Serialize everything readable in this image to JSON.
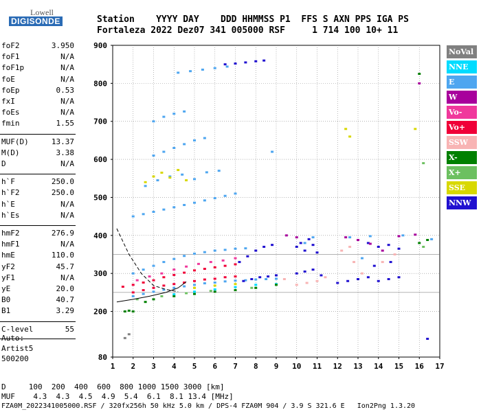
{
  "logo": {
    "lowell": "Lowell",
    "digisonde": "DIGISONDE"
  },
  "header": {
    "line1": "Station    YYYY DAY    DDD HHMMSS P1  FFS S AXN PPS IGA PS",
    "line2": "Fortaleza 2022 Dez07 341 005000 RSF     1 714 100 10+ 11"
  },
  "params": [
    {
      "group": 1,
      "label": "foF2",
      "value": "3.950"
    },
    {
      "group": 1,
      "label": "foF1",
      "value": "N/A"
    },
    {
      "group": 1,
      "label": "foF1p",
      "value": "N/A"
    },
    {
      "group": 1,
      "label": "foE",
      "value": "N/A"
    },
    {
      "group": 1,
      "label": "foEp",
      "value": "0.53"
    },
    {
      "group": 1,
      "label": "fxI",
      "value": "N/A"
    },
    {
      "group": 1,
      "label": "foEs",
      "value": "N/A"
    },
    {
      "group": 1,
      "label": "fmin",
      "value": "1.55"
    },
    {
      "group": 2,
      "label": "MUF(D)",
      "value": "13.37"
    },
    {
      "group": 2,
      "label": "M(D)",
      "value": "3.38"
    },
    {
      "group": 2,
      "label": "D",
      "value": "N/A"
    },
    {
      "group": 3,
      "label": "h`F",
      "value": "250.0"
    },
    {
      "group": 3,
      "label": "h`F2",
      "value": "250.0"
    },
    {
      "group": 3,
      "label": "h`E",
      "value": "N/A"
    },
    {
      "group": 3,
      "label": "h`Es",
      "value": "N/A"
    },
    {
      "group": 4,
      "label": "hmF2",
      "value": "276.9"
    },
    {
      "group": 4,
      "label": "hmF1",
      "value": "N/A"
    },
    {
      "group": 4,
      "label": "hmE",
      "value": "110.0"
    },
    {
      "group": 4,
      "label": "yF2",
      "value": "45.7"
    },
    {
      "group": 4,
      "label": "yF1",
      "value": "N/A"
    },
    {
      "group": 4,
      "label": "yE",
      "value": "20.0"
    },
    {
      "group": 4,
      "label": "B0",
      "value": "40.7"
    },
    {
      "group": 4,
      "label": "B1",
      "value": "3.29"
    },
    {
      "group": 5,
      "label": "C-level",
      "value": "55"
    }
  ],
  "auto": {
    "line1": "Auto:",
    "line2": "Artist5",
    "line3": "500200"
  },
  "footer": {
    "d_line": "D     100  200  400  600  800 1000 1500 3000 [km]",
    "muf_line": "MUF    4.3  4.3  4.5  4.9  5.4  6.1  8.1 13.4 [MHz]",
    "file_line": "FZA0M_2022341005000.RSF / 320fx256h 50 kHz 5.0 km / DPS-4 FZA0M 904 / 3.9 S 321.6 E   Ion2Png 1.3.20"
  },
  "legend": [
    {
      "label": "NoVal",
      "color": "#808080",
      "text_color": "#ffffff"
    },
    {
      "label": "NNE",
      "color": "#00dcff",
      "text_color": "#ffffff"
    },
    {
      "label": "E",
      "color": "#4ea6f0",
      "text_color": "#ffffff"
    },
    {
      "label": "W",
      "color": "#a8009c",
      "text_color": "#ffffff"
    },
    {
      "label": "Vo-",
      "color": "#f0389c",
      "text_color": "#ffffff"
    },
    {
      "label": "Vo+",
      "color": "#f00038",
      "text_color": "#ffffff"
    },
    {
      "label": "SSW",
      "color": "#f8b4b4",
      "text_color": "#ffffff"
    },
    {
      "label": "X-",
      "color": "#008000",
      "text_color": "#ffffff"
    },
    {
      "label": "X+",
      "color": "#6cc060",
      "text_color": "#ffffff"
    },
    {
      "label": "SSE",
      "color": "#d8d800",
      "text_color": "#ffffff"
    },
    {
      "label": "NNW",
      "color": "#2010d0",
      "text_color": "#ffffff"
    }
  ],
  "chart_data": {
    "type": "scatter",
    "title": "",
    "xlabel": "",
    "ylabel": "",
    "xlim": [
      1,
      17
    ],
    "ylim": [
      80,
      900
    ],
    "x_ticks": [
      1,
      2,
      3,
      4,
      5,
      6,
      7,
      8,
      9,
      10,
      11,
      12,
      13,
      14,
      15,
      16,
      17
    ],
    "y_ticks": [
      80,
      200,
      300,
      400,
      500,
      600,
      700,
      800,
      900
    ],
    "y_ref_lines": [
      350,
      250
    ],
    "grid": true,
    "legend_position": "right",
    "series": [
      {
        "legend": "E",
        "color": "#4ea6f0",
        "points": [
          [
            2.0,
            300
          ],
          [
            2.5,
            310
          ],
          [
            3.0,
            320
          ],
          [
            3.5,
            330
          ],
          [
            4.0,
            338
          ],
          [
            4.5,
            346
          ],
          [
            5.0,
            352
          ],
          [
            5.5,
            356
          ],
          [
            6.0,
            360
          ],
          [
            6.5,
            362
          ],
          [
            7.0,
            365
          ],
          [
            7.5,
            366
          ],
          [
            2.0,
            240
          ],
          [
            2.5,
            246
          ],
          [
            3.0,
            252
          ],
          [
            3.5,
            257
          ],
          [
            4.0,
            262
          ],
          [
            4.5,
            266
          ],
          [
            5.0,
            270
          ],
          [
            5.5,
            274
          ],
          [
            6.0,
            276
          ],
          [
            6.5,
            279
          ],
          [
            7.0,
            281
          ],
          [
            7.5,
            282
          ],
          [
            8.0,
            284
          ],
          [
            8.5,
            285
          ],
          [
            9.0,
            286
          ],
          [
            2.0,
            450
          ],
          [
            2.5,
            456
          ],
          [
            3.0,
            462
          ],
          [
            3.5,
            468
          ],
          [
            4.0,
            474
          ],
          [
            4.5,
            480
          ],
          [
            5.0,
            486
          ],
          [
            5.5,
            492
          ],
          [
            6.0,
            498
          ],
          [
            6.5,
            504
          ],
          [
            7.0,
            510
          ],
          [
            3.0,
            610
          ],
          [
            3.5,
            620
          ],
          [
            4.0,
            630
          ],
          [
            4.5,
            640
          ],
          [
            5.0,
            650
          ],
          [
            5.5,
            656
          ],
          [
            3.0,
            700
          ],
          [
            3.5,
            712
          ],
          [
            4.0,
            720
          ],
          [
            4.5,
            726
          ],
          [
            4.2,
            828
          ],
          [
            4.8,
            832
          ],
          [
            5.4,
            836
          ],
          [
            6.0,
            840
          ],
          [
            6.6,
            844
          ],
          [
            2.6,
            530
          ],
          [
            3.2,
            545
          ],
          [
            3.8,
            555
          ],
          [
            4.4,
            560
          ],
          [
            5.0,
            548
          ],
          [
            5.6,
            566
          ],
          [
            6.2,
            570
          ],
          [
            8.8,
            620
          ],
          [
            10.4,
            380
          ],
          [
            10.8,
            395
          ],
          [
            12.6,
            395
          ],
          [
            13.2,
            340
          ],
          [
            13.6,
            398
          ],
          [
            15.2,
            400
          ],
          [
            16.6,
            390
          ]
        ]
      },
      {
        "legend": "Vo+",
        "color": "#f00038",
        "points": [
          [
            1.5,
            265
          ],
          [
            2.0,
            270
          ],
          [
            2.5,
            276
          ],
          [
            3.0,
            282
          ],
          [
            3.5,
            290
          ],
          [
            4.0,
            296
          ],
          [
            4.5,
            302
          ],
          [
            5.0,
            308
          ],
          [
            5.5,
            312
          ],
          [
            6.0,
            316
          ],
          [
            6.5,
            320
          ],
          [
            7.0,
            324
          ],
          [
            2.0,
            250
          ],
          [
            2.5,
            256
          ],
          [
            3.0,
            262
          ],
          [
            3.5,
            268
          ],
          [
            4.0,
            272
          ],
          [
            4.5,
            276
          ],
          [
            5.0,
            280
          ],
          [
            5.5,
            284
          ],
          [
            6.0,
            286
          ],
          [
            6.5,
            290
          ],
          [
            7.0,
            292
          ]
        ]
      },
      {
        "legend": "Vo-",
        "color": "#f0389c",
        "points": [
          [
            2.2,
            282
          ],
          [
            2.8,
            292
          ],
          [
            3.4,
            300
          ],
          [
            4.0,
            310
          ],
          [
            4.6,
            318
          ],
          [
            5.2,
            325
          ],
          [
            5.8,
            330
          ],
          [
            6.4,
            334
          ],
          [
            7.0,
            340
          ]
        ]
      },
      {
        "legend": "NNW",
        "color": "#2010d0",
        "points": [
          [
            6.5,
            850
          ],
          [
            7.0,
            852
          ],
          [
            7.5,
            855
          ],
          [
            8.0,
            858
          ],
          [
            8.4,
            860
          ],
          [
            7.2,
            330
          ],
          [
            7.6,
            345
          ],
          [
            8.0,
            360
          ],
          [
            8.4,
            370
          ],
          [
            8.8,
            375
          ],
          [
            7.4,
            280
          ],
          [
            7.8,
            285
          ],
          [
            8.2,
            290
          ],
          [
            8.6,
            292
          ],
          [
            9.0,
            295
          ],
          [
            10.0,
            370
          ],
          [
            10.2,
            380
          ],
          [
            10.4,
            360
          ],
          [
            10.6,
            390
          ],
          [
            10.8,
            375
          ],
          [
            11.0,
            355
          ],
          [
            10.0,
            300
          ],
          [
            10.4,
            305
          ],
          [
            10.8,
            310
          ],
          [
            11.2,
            295
          ],
          [
            12.0,
            275
          ],
          [
            12.5,
            280
          ],
          [
            13.0,
            285
          ],
          [
            13.5,
            290
          ],
          [
            14.0,
            280
          ],
          [
            14.5,
            285
          ],
          [
            15.0,
            290
          ],
          [
            13.5,
            380
          ],
          [
            14.0,
            370
          ],
          [
            14.5,
            375
          ],
          [
            15.0,
            365
          ],
          [
            13.8,
            320
          ],
          [
            14.6,
            330
          ],
          [
            16.4,
            128
          ]
        ]
      },
      {
        "legend": "SSW",
        "color": "#f8b4b4",
        "points": [
          [
            9.4,
            285
          ],
          [
            10.0,
            270
          ],
          [
            10.5,
            275
          ],
          [
            11.0,
            280
          ],
          [
            11.4,
            290
          ],
          [
            12.2,
            360
          ],
          [
            12.6,
            370
          ],
          [
            12.8,
            330
          ],
          [
            13.2,
            300
          ],
          [
            14.2,
            330
          ],
          [
            14.8,
            350
          ]
        ]
      },
      {
        "legend": "W",
        "color": "#a8009c",
        "points": [
          [
            9.5,
            400
          ],
          [
            10.0,
            395
          ],
          [
            12.4,
            395
          ],
          [
            13.0,
            388
          ],
          [
            13.6,
            378
          ],
          [
            14.2,
            360
          ],
          [
            15.0,
            398
          ],
          [
            15.8,
            402
          ],
          [
            16.0,
            800
          ]
        ]
      },
      {
        "legend": "NNE",
        "color": "#00dcff",
        "points": [
          [
            4.0,
            245
          ],
          [
            5.0,
            252
          ],
          [
            6.0,
            258
          ],
          [
            7.0,
            264
          ],
          [
            8.0,
            270
          ],
          [
            9.0,
            272
          ]
        ]
      },
      {
        "legend": "X-",
        "color": "#008000",
        "points": [
          [
            1.6,
            200
          ],
          [
            1.8,
            202
          ],
          [
            2.0,
            200
          ],
          [
            2.6,
            225
          ],
          [
            3.0,
            232
          ],
          [
            4.0,
            240
          ],
          [
            5.0,
            246
          ],
          [
            6.0,
            252
          ],
          [
            7.0,
            256
          ],
          [
            8.0,
            262
          ],
          [
            9.0,
            270
          ],
          [
            16.0,
            380
          ],
          [
            16.4,
            388
          ],
          [
            16.0,
            825
          ]
        ]
      },
      {
        "legend": "X+",
        "color": "#6cc060",
        "points": [
          [
            2.2,
            232
          ],
          [
            3.4,
            240
          ],
          [
            4.6,
            248
          ],
          [
            5.8,
            254
          ],
          [
            7.8,
            262
          ],
          [
            16.2,
            370
          ],
          [
            16.2,
            590
          ]
        ]
      },
      {
        "legend": "SSE",
        "color": "#d8d800",
        "points": [
          [
            2.6,
            540
          ],
          [
            3.0,
            555
          ],
          [
            3.4,
            565
          ],
          [
            3.8,
            552
          ],
          [
            4.2,
            572
          ],
          [
            4.6,
            545
          ],
          [
            5.0,
            262
          ],
          [
            6.0,
            268
          ],
          [
            7.0,
            272
          ],
          [
            12.4,
            680
          ],
          [
            12.6,
            660
          ],
          [
            15.8,
            680
          ]
        ]
      },
      {
        "legend": "NoVal",
        "color": "#808080",
        "points": [
          [
            1.6,
            130
          ],
          [
            1.8,
            140
          ]
        ]
      }
    ],
    "lines": [
      {
        "name": "",
        "style": "dashed",
        "color": "#000000",
        "x": [
          1.2,
          1.8,
          2.4,
          3.0,
          3.6,
          4.2
        ],
        "y": [
          418,
          350,
          300,
          268,
          258,
          252
        ]
      },
      {
        "name": "",
        "style": "solid",
        "color": "#000000",
        "x": [
          1.2,
          2.0,
          2.8,
          3.6,
          4.2,
          4.6
        ],
        "y": [
          225,
          232,
          240,
          250,
          262,
          278
        ]
      }
    ]
  }
}
